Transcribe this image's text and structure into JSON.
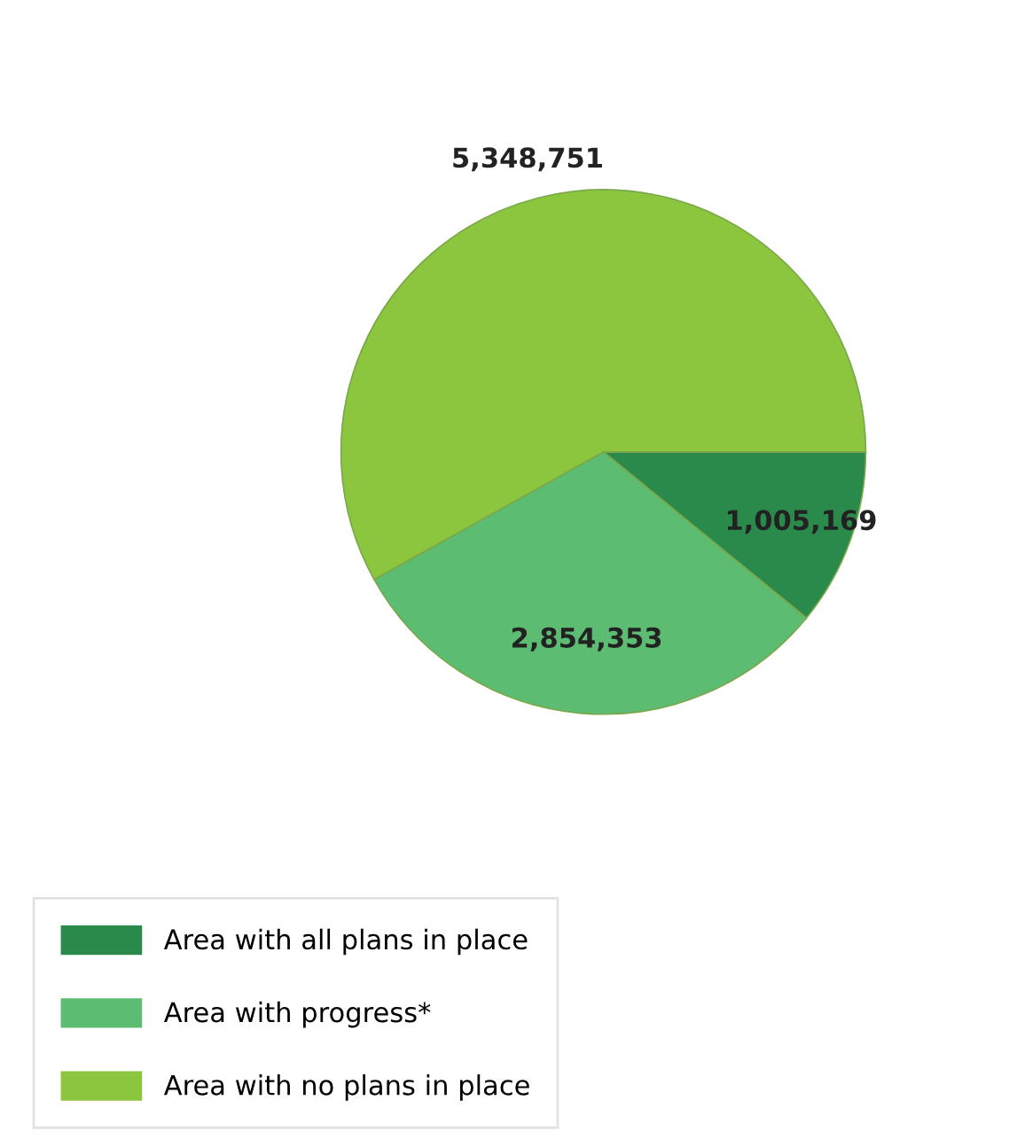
{
  "chart_data": {
    "type": "pie",
    "categories": [
      "Area with all plans in place",
      "Area with progress*",
      "Area with no plans in place"
    ],
    "values": [
      1005169,
      2854353,
      5348751
    ],
    "colors": [
      "#2a8a4c",
      "#5cbc72",
      "#8cc63f"
    ],
    "value_labels": [
      "1,005,169",
      "2,854,353",
      "5,348,751"
    ],
    "legend": "bottom left"
  }
}
